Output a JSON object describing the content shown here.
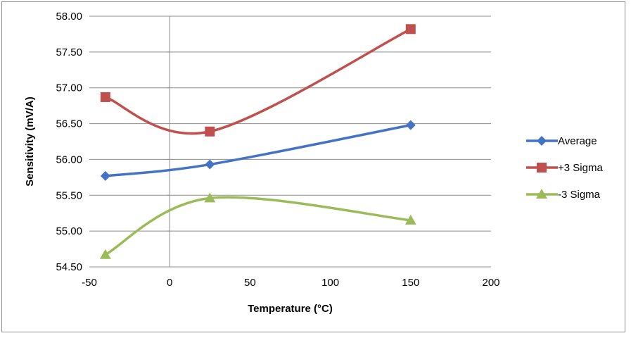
{
  "chart_data": {
    "type": "line",
    "smooth": true,
    "xlabel": "Temperature (°C)",
    "ylabel": "Sensitivity (mV/A)",
    "xlim": [
      -50,
      200
    ],
    "ylim": [
      54.5,
      58.0
    ],
    "x_ticks": [
      "-50",
      "0",
      "50",
      "100",
      "150",
      "200"
    ],
    "y_ticks": [
      "54.50",
      "55.00",
      "55.50",
      "56.00",
      "56.50",
      "57.00",
      "57.50",
      "58.00"
    ],
    "grid": "horizontal",
    "legend_position": "right",
    "x": [
      -40,
      25,
      150
    ],
    "series": [
      {
        "name": "Average",
        "values": [
          55.77,
          55.93,
          56.48
        ],
        "color": "#4472c4",
        "marker": "diamond"
      },
      {
        "name": "+3 Sigma",
        "values": [
          56.87,
          56.39,
          57.82
        ],
        "color": "#c0504d",
        "marker": "square"
      },
      {
        "name": "-3 Sigma",
        "values": [
          54.67,
          55.46,
          55.15
        ],
        "color": "#9bbb59",
        "marker": "triangle"
      }
    ]
  }
}
